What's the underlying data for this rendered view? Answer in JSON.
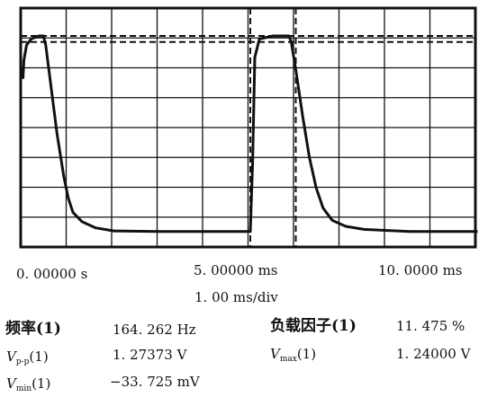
{
  "chart_data": {
    "type": "line",
    "xlim": [
      0,
      10
    ],
    "x_unit": "ms",
    "grid": true,
    "x_tick_labels": [
      "0. 00000 s",
      "5. 00000 ms",
      "10. 0000 ms"
    ],
    "timebase": "1. 00 ms/div",
    "series": [
      {
        "x": [
          0.0,
          0.02,
          0.08,
          0.18,
          0.35,
          0.45,
          0.5,
          0.6,
          0.75,
          0.9,
          1.0,
          1.1,
          1.3,
          1.6,
          2.0,
          3.0,
          4.0,
          5.0,
          5.05,
          5.1,
          5.2,
          5.5,
          5.85,
          5.9,
          6.0,
          6.15,
          6.3,
          6.45,
          6.6,
          6.8,
          7.1,
          7.5,
          8.5,
          9.5,
          10.0
        ],
        "y": [
          0.96,
          1.08,
          1.18,
          1.22,
          1.24,
          1.24,
          1.18,
          0.95,
          0.6,
          0.32,
          0.18,
          0.09,
          0.03,
          -0.01,
          -0.03,
          -0.034,
          -0.034,
          -0.034,
          0.4,
          1.1,
          1.22,
          1.24,
          1.24,
          1.2,
          1.02,
          0.72,
          0.45,
          0.25,
          0.12,
          0.04,
          0.0,
          -0.02,
          -0.034,
          -0.034,
          -0.034
        ]
      }
    ],
    "cursors_x": [
      5.0,
      6.0
    ],
    "cursors_y": [
      1.24,
      1.2
    ]
  },
  "measurements": {
    "freq_label": "频率(1)",
    "freq_value": "164. 262 Hz",
    "duty_label": "负载因子(1)",
    "duty_value": "11. 475 %",
    "vpp_sym": "V",
    "vpp_sub": "p-p",
    "vpp_ch": "(1)",
    "vpp_value": "1. 27373 V",
    "vmax_sym": "V",
    "vmax_sub": "max",
    "vmax_ch": "(1)",
    "vmax_value": "1. 24000 V",
    "vmin_sym": "V",
    "vmin_sub": "min",
    "vmin_ch": "(1)",
    "vmin_value": "−33. 725 mV"
  }
}
